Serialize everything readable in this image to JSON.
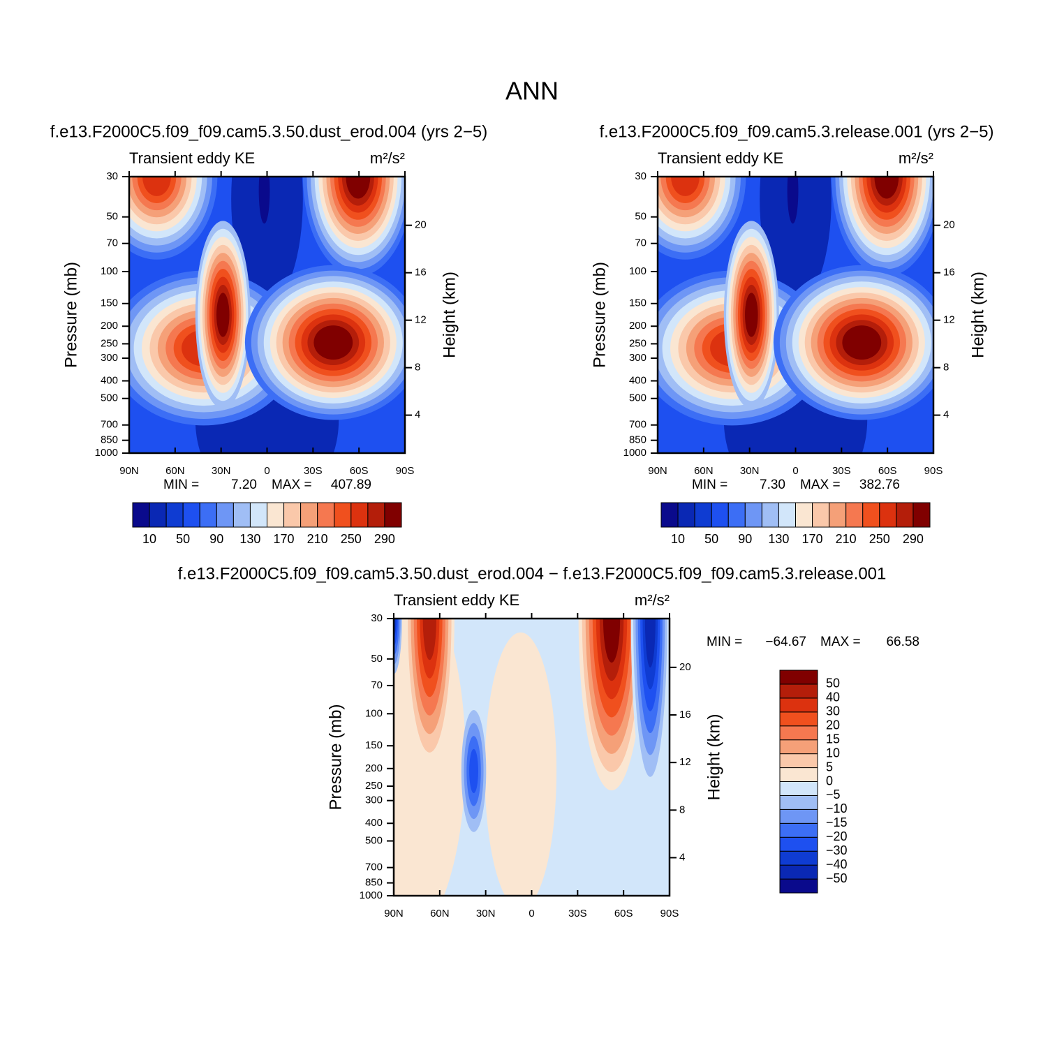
{
  "title": "ANN",
  "chart_data": [
    {
      "type": "contour",
      "subtitle": "f.e13.F2000C5.f09_f09.cam5.3.50.dust_erod.004 (yrs 2−5)",
      "left_label": "Transient eddy KE",
      "units": "m²/s²",
      "ylabel": "Pressure (mb)",
      "y2label": "Height (km)",
      "xlim": [
        90,
        -90
      ],
      "xticks": [
        {
          "value": 90,
          "label": "90N"
        },
        {
          "value": 60,
          "label": "60N"
        },
        {
          "value": 30,
          "label": "30N"
        },
        0,
        {
          "value": -30,
          "label": "30S"
        },
        {
          "value": -60,
          "label": "60S"
        },
        {
          "value": -90,
          "label": "90S"
        }
      ],
      "ylim": [
        30,
        1000
      ],
      "yscale": "log",
      "yticks": [
        30,
        50,
        70,
        100,
        150,
        200,
        250,
        300,
        400,
        500,
        700,
        850,
        1000
      ],
      "y2lim": [
        0.8,
        24.1
      ],
      "y2ticks": [
        4,
        8,
        12,
        16,
        20
      ],
      "stats": {
        "min_label": "MIN =",
        "min": {
          "value": 7.2,
          "label": "7.20"
        },
        "max_label": "MAX =",
        "max": {
          "value": 407.89,
          "label": "407.89"
        }
      },
      "colorbar": {
        "orientation": "horizontal",
        "levels": [
          10,
          50,
          90,
          130,
          170,
          210,
          250,
          290
        ],
        "colors": [
          "#0a0a8c",
          "#0a28b4",
          "#0f3cd2",
          "#1e50f0",
          "#3c6ef5",
          "#6e96f5",
          "#a0bef5",
          "#d2e6fa",
          "#fae6d2",
          "#fac8aa",
          "#f5a078",
          "#f57850",
          "#f0501e",
          "#dc320f",
          "#b41e0a",
          "#800000"
        ]
      }
    },
    {
      "type": "contour",
      "subtitle": "f.e13.F2000C5.f09_f09.cam5.3.release.001 (yrs 2−5)",
      "left_label": "Transient eddy KE",
      "units": "m²/s²",
      "ylabel": "Pressure (mb)",
      "y2label": "Height (km)",
      "xlim": [
        90,
        -90
      ],
      "xticks": [
        {
          "value": 90,
          "label": "90N"
        },
        {
          "value": 60,
          "label": "60N"
        },
        {
          "value": 30,
          "label": "30N"
        },
        0,
        {
          "value": -30,
          "label": "30S"
        },
        {
          "value": -60,
          "label": "60S"
        },
        {
          "value": -90,
          "label": "90S"
        }
      ],
      "ylim": [
        30,
        1000
      ],
      "yscale": "log",
      "yticks": [
        30,
        50,
        70,
        100,
        150,
        200,
        250,
        300,
        400,
        500,
        700,
        850,
        1000
      ],
      "y2lim": [
        0.8,
        24.1
      ],
      "y2ticks": [
        4,
        8,
        12,
        16,
        20
      ],
      "stats": {
        "min_label": "MIN =",
        "min": {
          "value": 7.3,
          "label": "7.30"
        },
        "max_label": "MAX =",
        "max": {
          "value": 382.76,
          "label": "382.76"
        }
      },
      "colorbar": {
        "orientation": "horizontal",
        "levels": [
          10,
          50,
          90,
          130,
          170,
          210,
          250,
          290
        ],
        "colors": [
          "#0a0a8c",
          "#0a28b4",
          "#0f3cd2",
          "#1e50f0",
          "#3c6ef5",
          "#6e96f5",
          "#a0bef5",
          "#d2e6fa",
          "#fae6d2",
          "#fac8aa",
          "#f5a078",
          "#f57850",
          "#f0501e",
          "#dc320f",
          "#b41e0a",
          "#800000"
        ]
      }
    },
    {
      "type": "contour",
      "subtitle": "f.e13.F2000C5.f09_f09.cam5.3.50.dust_erod.004 − f.e13.F2000C5.f09_f09.cam5.3.release.001",
      "left_label": "Transient eddy KE",
      "units": "m²/s²",
      "ylabel": "Pressure (mb)",
      "y2label": "Height (km)",
      "xlim": [
        90,
        -90
      ],
      "xticks": [
        {
          "value": 90,
          "label": "90N"
        },
        {
          "value": 60,
          "label": "60N"
        },
        {
          "value": 30,
          "label": "30N"
        },
        0,
        {
          "value": -30,
          "label": "30S"
        },
        {
          "value": -60,
          "label": "60S"
        },
        {
          "value": -90,
          "label": "90S"
        }
      ],
      "ylim": [
        30,
        1000
      ],
      "yscale": "log",
      "yticks": [
        30,
        50,
        70,
        100,
        150,
        200,
        250,
        300,
        400,
        500,
        700,
        850,
        1000
      ],
      "y2lim": [
        0.8,
        24.1
      ],
      "y2ticks": [
        4,
        8,
        12,
        16,
        20
      ],
      "stats": {
        "min_label": "MIN =",
        "min": {
          "value": -64.67,
          "label": "−64.67"
        },
        "max_label": "MAX =",
        "max": {
          "value": 66.58,
          "label": "66.58"
        }
      },
      "colorbar": {
        "orientation": "vertical",
        "levels": [
          {
            "value": -50,
            "label": "−50"
          },
          {
            "value": -40,
            "label": "−40"
          },
          {
            "value": -30,
            "label": "−30"
          },
          {
            "value": -20,
            "label": "−20"
          },
          {
            "value": -15,
            "label": "−15"
          },
          {
            "value": -10,
            "label": "−10"
          },
          {
            "value": -5,
            "label": "−5"
          },
          0,
          5,
          10,
          15,
          20,
          30,
          40,
          50
        ],
        "colors": [
          "#0a0a8c",
          "#0a28b4",
          "#0f3cd2",
          "#1e50f0",
          "#3c6ef5",
          "#6e96f5",
          "#a0bef5",
          "#d2e6fa",
          "#fae6d2",
          "#fac8aa",
          "#f5a078",
          "#f57850",
          "#f0501e",
          "#dc320f",
          "#b41e0a",
          "#800000"
        ]
      }
    }
  ]
}
